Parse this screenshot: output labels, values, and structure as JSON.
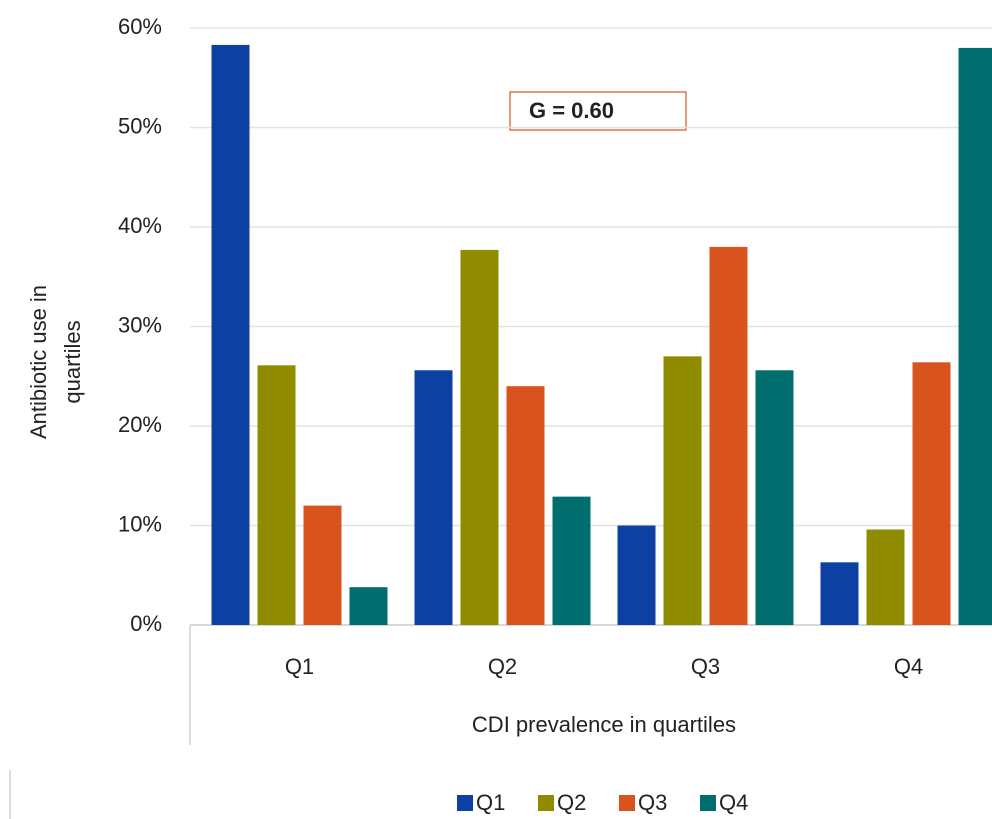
{
  "chart_data": {
    "type": "bar",
    "x_label": "CDI prevalence in quartiles",
    "y_label": [
      "Antibiotic use in",
      "quartiles"
    ],
    "annotation": "G = 0.60",
    "categories": [
      "Q1",
      "Q2",
      "Q3",
      "Q4"
    ],
    "series": [
      {
        "name": "Q1",
        "color": "#0c41a3",
        "values": [
          58.3,
          25.6,
          10.0,
          6.3
        ]
      },
      {
        "name": "Q2",
        "color": "#8f8c00",
        "values": [
          26.1,
          37.7,
          27.0,
          9.6
        ]
      },
      {
        "name": "Q3",
        "color": "#d9531e",
        "values": [
          12.0,
          24.0,
          38.0,
          26.4
        ]
      },
      {
        "name": "Q4",
        "color": "#006e6e",
        "values": [
          3.8,
          12.9,
          25.6,
          58.0
        ]
      }
    ],
    "ylim": [
      0,
      60
    ],
    "yticks": [
      {
        "value": 0,
        "label": "0%"
      },
      {
        "value": 10,
        "label": "10%"
      },
      {
        "value": 20,
        "label": "20%"
      },
      {
        "value": 30,
        "label": "30%"
      },
      {
        "value": 40,
        "label": "40%"
      },
      {
        "value": 50,
        "label": "50%"
      },
      {
        "value": 60,
        "label": "60%"
      }
    ],
    "grid": true
  }
}
